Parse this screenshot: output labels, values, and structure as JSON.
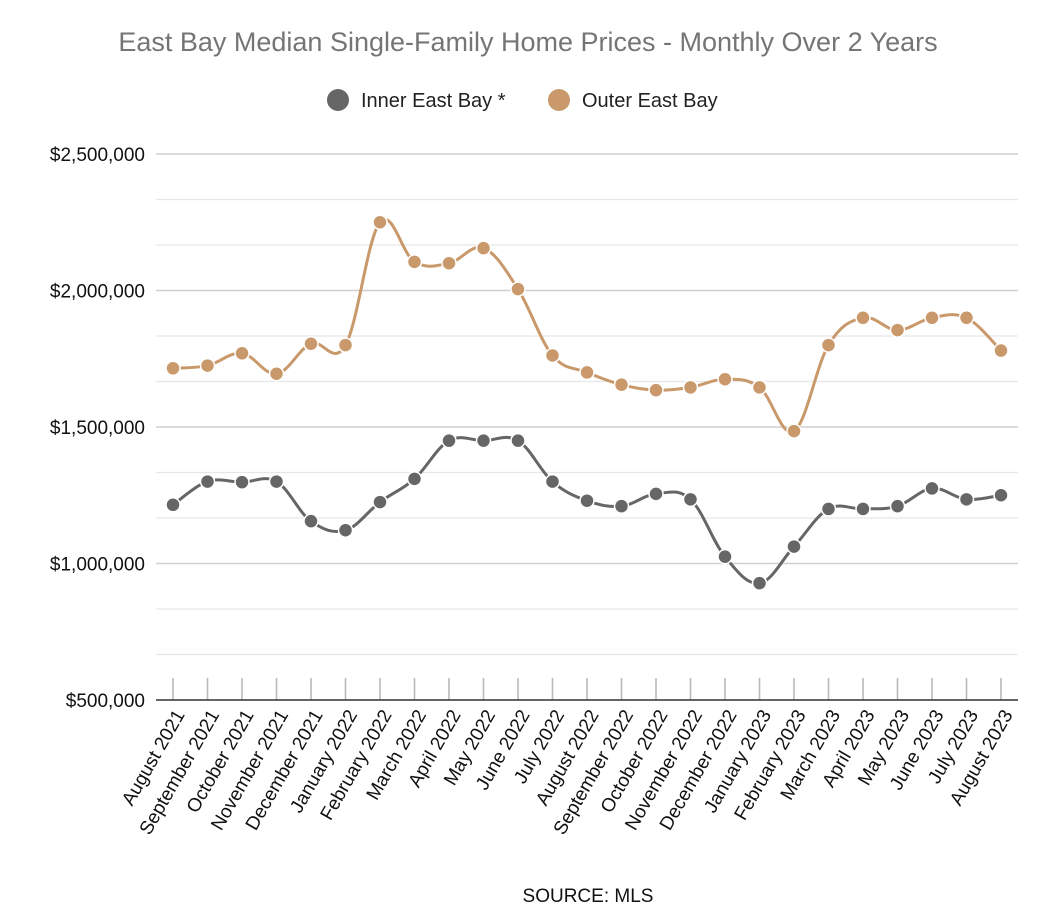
{
  "chart_data": {
    "type": "line",
    "title": "East Bay Median Single-Family Home Prices - Monthly Over 2 Years",
    "source": "SOURCE: MLS",
    "xlabel": "",
    "ylabel": "",
    "ylim": [
      500000,
      2500000
    ],
    "yticks": [
      500000,
      1000000,
      1500000,
      2000000,
      2500000
    ],
    "ytick_labels": [
      "$500,000",
      "$1,000,000",
      "$1,500,000",
      "$2,000,000",
      "$2,500,000"
    ],
    "grid": true,
    "legend_position": "top-center",
    "categories": [
      "August 2021",
      "September 2021",
      "October 2021",
      "November 2021",
      "December 2021",
      "January 2022",
      "February 2022",
      "March 2022",
      "April 2022",
      "May 2022",
      "June 2022",
      "July 2022",
      "August 2022",
      "September 2022",
      "October 2022",
      "November 2022",
      "December 2022",
      "January 2023",
      "February 2023",
      "March 2023",
      "April 2023",
      "May 2023",
      "June 2023",
      "July 2023",
      "August 2023"
    ],
    "series": [
      {
        "name": "Inner East Bay *",
        "color": "#666666",
        "values": [
          1215000,
          1300000,
          1298000,
          1300000,
          1155000,
          1122000,
          1225000,
          1310000,
          1450000,
          1450000,
          1450000,
          1300000,
          1230000,
          1210000,
          1255000,
          1235000,
          1025000,
          928000,
          1062000,
          1200000,
          1200000,
          1210000,
          1275000,
          1235000,
          1250000
        ]
      },
      {
        "name": "Outer East Bay",
        "color": "#c9996b",
        "values": [
          1715000,
          1725000,
          1770000,
          1695000,
          1805000,
          1800000,
          2250000,
          2105000,
          2100000,
          2155000,
          2005000,
          1762000,
          1700000,
          1655000,
          1635000,
          1645000,
          1675000,
          1645000,
          1485000,
          1800000,
          1900000,
          1855000,
          1900000,
          1900000,
          1780000
        ]
      }
    ]
  }
}
